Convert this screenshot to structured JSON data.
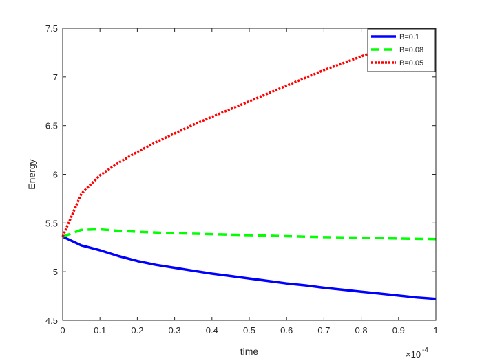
{
  "chart_data": {
    "type": "line",
    "title": "",
    "xlabel": "time",
    "ylabel": "Energy",
    "xlim": [
      0,
      1
    ],
    "ylim": [
      4.5,
      7.5
    ],
    "x_multiplier": {
      "base": "×10",
      "exponent": "-4"
    },
    "grid": false,
    "legend_position": "top-right",
    "xticks": [
      "0",
      "0.1",
      "0.2",
      "0.3",
      "0.4",
      "0.5",
      "0.6",
      "0.7",
      "0.8",
      "0.9",
      "1"
    ],
    "yticks": [
      "4.5",
      "5",
      "5.5",
      "6",
      "6.5",
      "7",
      "7.5"
    ],
    "series": [
      {
        "name": "B=0.1",
        "color": "#0000ff",
        "style": "solid",
        "x": [
          0,
          0.05,
          0.1,
          0.15,
          0.2,
          0.25,
          0.3,
          0.35,
          0.4,
          0.45,
          0.5,
          0.55,
          0.6,
          0.65,
          0.7,
          0.75,
          0.8,
          0.85,
          0.9,
          0.95,
          1.0
        ],
        "y": [
          5.36,
          5.27,
          5.22,
          5.16,
          5.11,
          5.07,
          5.04,
          5.01,
          4.98,
          4.955,
          4.93,
          4.905,
          4.88,
          4.86,
          4.835,
          4.815,
          4.795,
          4.775,
          4.755,
          4.735,
          4.72
        ]
      },
      {
        "name": "B=0.08",
        "color": "#00ff00",
        "style": "dashed",
        "x": [
          0,
          0.05,
          0.1,
          0.15,
          0.2,
          0.3,
          0.4,
          0.5,
          0.6,
          0.7,
          0.8,
          0.9,
          1.0
        ],
        "y": [
          5.36,
          5.43,
          5.435,
          5.42,
          5.41,
          5.395,
          5.385,
          5.375,
          5.365,
          5.355,
          5.35,
          5.34,
          5.335
        ]
      },
      {
        "name": "B=0.05",
        "color": "#ff0000",
        "style": "dotted",
        "x": [
          0,
          0.05,
          0.1,
          0.15,
          0.2,
          0.25,
          0.3,
          0.35,
          0.4,
          0.45,
          0.5,
          0.55,
          0.6,
          0.65,
          0.7,
          0.75,
          0.8,
          0.84
        ],
        "y": [
          5.36,
          5.8,
          5.99,
          6.12,
          6.23,
          6.33,
          6.42,
          6.51,
          6.59,
          6.67,
          6.75,
          6.83,
          6.91,
          6.99,
          7.07,
          7.14,
          7.21,
          7.27
        ]
      }
    ]
  }
}
